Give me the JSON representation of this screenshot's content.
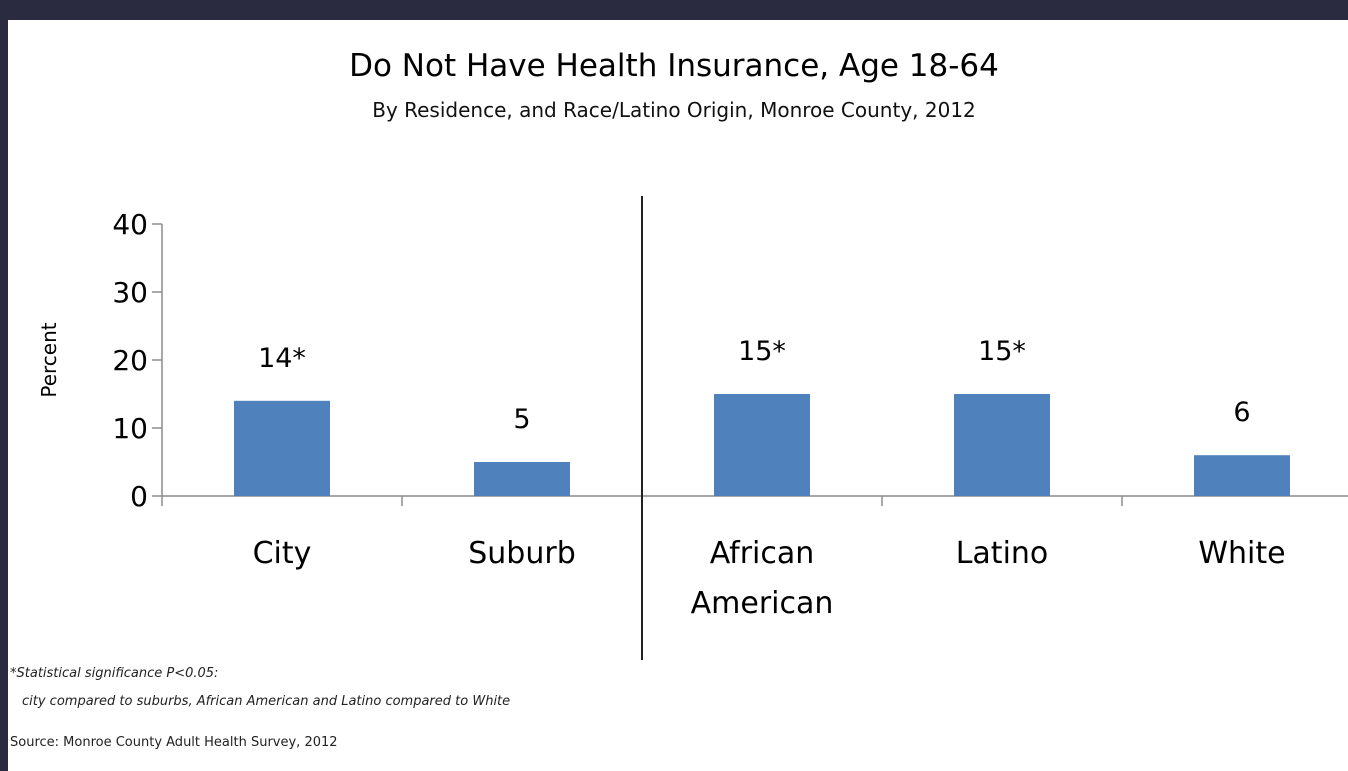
{
  "chart_data": {
    "type": "bar",
    "title": "Do Not Have Health Insurance, Age 18-64",
    "subtitle": "By Residence, and Race/Latino Origin, Monroe County, 2012",
    "ylabel": "Percent",
    "xlabel": "",
    "ylim": [
      0,
      40
    ],
    "yticks": [
      "0",
      "10",
      "20",
      "30",
      "40"
    ],
    "grid": false,
    "legend": "none",
    "bar_color": "#4f81bd",
    "categories": [
      {
        "lines": [
          "City"
        ]
      },
      {
        "lines": [
          "Suburb"
        ]
      },
      {
        "lines": [
          "African",
          "American"
        ]
      },
      {
        "lines": [
          "Latino"
        ]
      },
      {
        "lines": [
          "White"
        ]
      }
    ],
    "values": [
      14,
      5,
      15,
      15,
      6
    ],
    "data_labels": [
      "14*",
      "5",
      "15*",
      "15*",
      "6"
    ],
    "group_divider_after_category": 2
  },
  "footnotes": {
    "line1": "*Statistical significance P<0.05:",
    "line2": "city compared to suburbs, African American and Latino compared to White"
  },
  "source": "Source: Monroe County Adult Health Survey, 2012"
}
